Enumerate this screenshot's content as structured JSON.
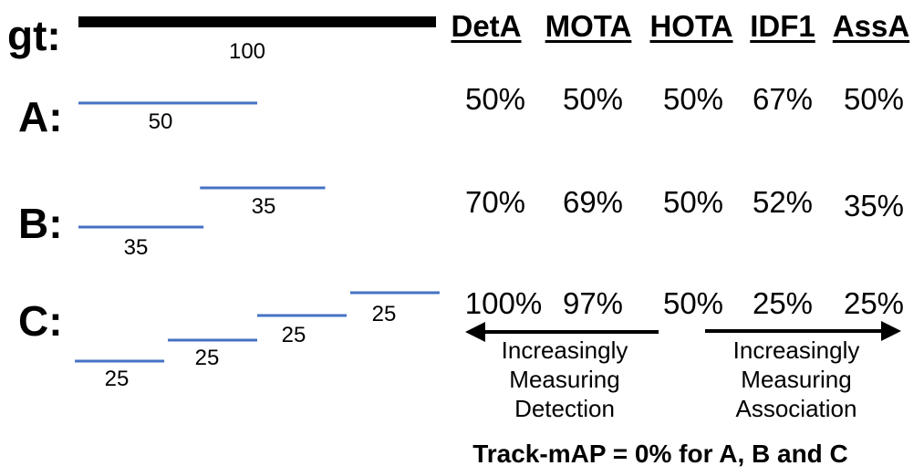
{
  "rows": [
    {
      "label": "gt:",
      "segments": [
        {
          "start": 0,
          "end": 100,
          "label": "100"
        }
      ]
    },
    {
      "label": "A:",
      "segments": [
        {
          "start": 0,
          "end": 50,
          "label": "50"
        }
      ]
    },
    {
      "label": "B:",
      "segments": [
        {
          "start": 0,
          "end": 35,
          "label": "35"
        },
        {
          "start": 34,
          "end": 69,
          "label": "35"
        }
      ]
    },
    {
      "label": "C:",
      "segments": [
        {
          "start": -1,
          "end": 24,
          "label": "25"
        },
        {
          "start": 25,
          "end": 50,
          "label": "25"
        },
        {
          "start": 50,
          "end": 75,
          "label": "25"
        },
        {
          "start": 76,
          "end": 101,
          "label": "25"
        }
      ]
    }
  ],
  "metrics": {
    "headers": [
      "DetA",
      "MOTA",
      "HOTA",
      "IDF1",
      "AssA"
    ],
    "values": {
      "A": [
        "50%",
        "50%",
        "50%",
        "67%",
        "50%"
      ],
      "B": [
        "70%",
        "69%",
        "50%",
        "52%",
        "35%"
      ],
      "C": [
        "100%",
        "97%",
        "50%",
        "25%",
        "25%"
      ]
    }
  },
  "arrows": {
    "left": {
      "text": [
        "Increasingly",
        "Measuring",
        "Detection"
      ]
    },
    "right": {
      "text": [
        "Increasingly",
        "Measuring",
        "Association"
      ]
    }
  },
  "footer": "Track-mAP = 0% for A, B and C",
  "colors": {
    "gt_bar": "#000000",
    "track_segment": "#4472c4"
  }
}
